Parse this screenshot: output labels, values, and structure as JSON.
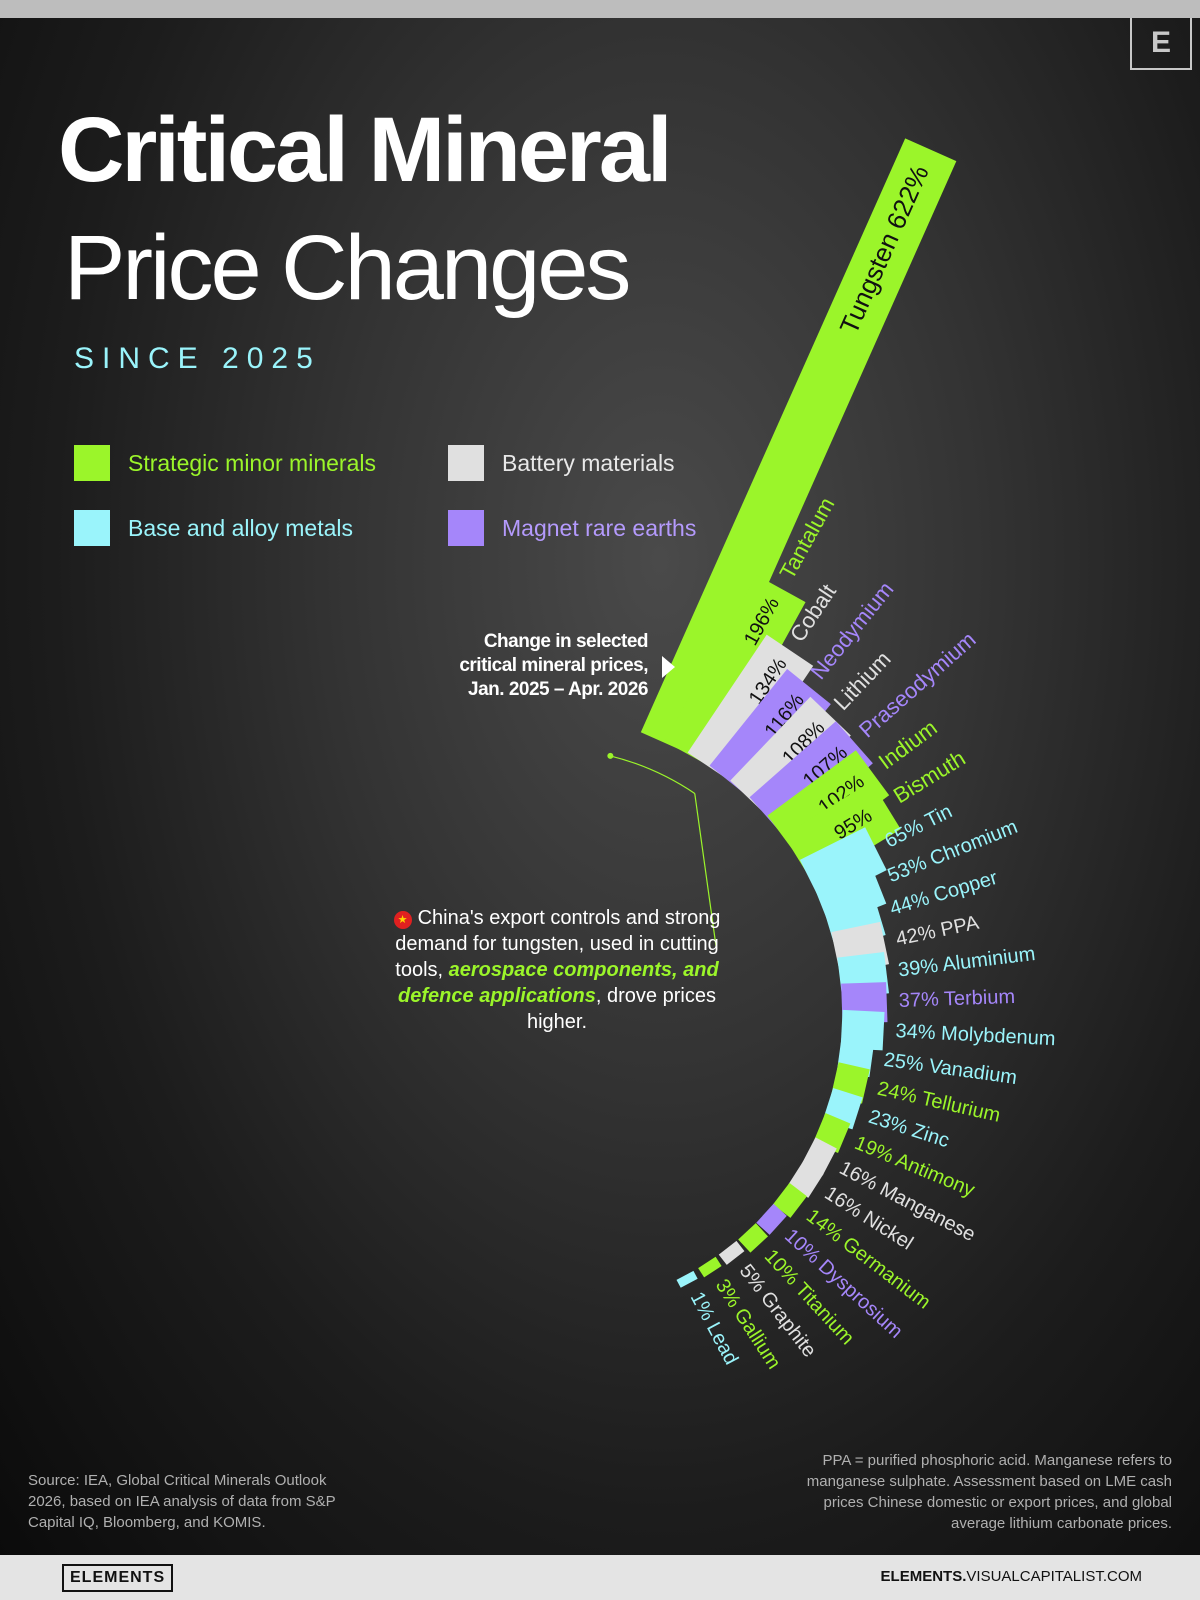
{
  "header": {
    "title_line1": "Critical Mineral",
    "title_line2": "Price Changes",
    "subtitle": "SINCE 2025",
    "corner_logo": "E"
  },
  "legend": [
    {
      "label": "Strategic minor minerals",
      "color": "#9bf52a"
    },
    {
      "label": "Battery materials",
      "color": "#e0e0e0"
    },
    {
      "label": "Base and alloy metals",
      "color": "#9af4fb"
    },
    {
      "label": "Magnet rare earths",
      "color": "#a586fa"
    }
  ],
  "callout": {
    "line1": "Change in selected",
    "line2": "critical mineral prices,",
    "line3": "Jan. 2025 – Apr. 2026"
  },
  "annotation": {
    "text1": "China's export controls and strong demand for tungsten, used in cutting tools, ",
    "emphasis": "aerospace components, and defence applications",
    "text2": ", drove prices higher.",
    "flag_icon": "china-flag-icon"
  },
  "source": "Source: IEA, Global Critical Minerals Outlook 2026, based on IEA analysis of  data from S&P Capital IQ, Bloomberg, and KOMIS.",
  "note": "PPA = purified phosphoric acid. Manganese refers to manganese sulphate. Assessment based on LME cash prices  Chinese domestic or export prices, and global average lithium carbonate prices.",
  "footer": {
    "brand": "ELEMENTS",
    "url_bold": "ELEMENTS.",
    "url_rest": "VISUALCAPITALIST.COM"
  },
  "colors": {
    "strategic": "#9bf52a",
    "battery": "#e0e0e0",
    "base": "#9af4fb",
    "magnet": "#a586fa"
  },
  "chart_data": {
    "type": "radial-bar",
    "unit": "%",
    "series": [
      {
        "name": "Tungsten",
        "value": 622,
        "category": "strategic",
        "label": "622%"
      },
      {
        "name": "Tantalum",
        "value": 196,
        "category": "strategic",
        "label": "196%"
      },
      {
        "name": "Cobalt",
        "value": 134,
        "category": "battery",
        "label": "134%"
      },
      {
        "name": "Neodymium",
        "value": 116,
        "category": "magnet",
        "label": "116%"
      },
      {
        "name": "Lithium",
        "value": 108,
        "category": "battery",
        "label": "108%"
      },
      {
        "name": "Praseodymium",
        "value": 107,
        "category": "magnet",
        "label": "107%"
      },
      {
        "name": "Indium",
        "value": 102,
        "category": "strategic",
        "label": "102%"
      },
      {
        "name": "Bismuth",
        "value": 95,
        "category": "strategic",
        "label": "95%"
      },
      {
        "name": "Tin",
        "value": 65,
        "category": "base",
        "label": "65%"
      },
      {
        "name": "Chromium",
        "value": 53,
        "category": "base",
        "label": "53%"
      },
      {
        "name": "Copper",
        "value": 44,
        "category": "base",
        "label": "44%"
      },
      {
        "name": "PPA",
        "value": 42,
        "category": "battery",
        "label": "42%"
      },
      {
        "name": "Aluminium",
        "value": 39,
        "category": "base",
        "label": "39%"
      },
      {
        "name": "Terbium",
        "value": 37,
        "category": "magnet",
        "label": "37%"
      },
      {
        "name": "Molybdenum",
        "value": 34,
        "category": "base",
        "label": "34%"
      },
      {
        "name": "Vanadium",
        "value": 25,
        "category": "base",
        "label": "25%"
      },
      {
        "name": "Tellurium",
        "value": 24,
        "category": "strategic",
        "label": "24%"
      },
      {
        "name": "Zinc",
        "value": 23,
        "category": "base",
        "label": "23%"
      },
      {
        "name": "Antimony",
        "value": 19,
        "category": "strategic",
        "label": "19%"
      },
      {
        "name": "Manganese",
        "value": 16,
        "category": "battery",
        "label": "16%"
      },
      {
        "name": "Nickel",
        "value": 16,
        "category": "battery",
        "label": "16%"
      },
      {
        "name": "Germanium",
        "value": 14,
        "category": "strategic",
        "label": "14%"
      },
      {
        "name": "Dysprosium",
        "value": 10,
        "category": "magnet",
        "label": "10%"
      },
      {
        "name": "Titanium",
        "value": 10,
        "category": "strategic",
        "label": "10%"
      },
      {
        "name": "Graphite",
        "value": 5,
        "category": "battery",
        "label": "5%"
      },
      {
        "name": "Gallium",
        "value": 3,
        "category": "strategic",
        "label": "3%"
      },
      {
        "name": "Lead",
        "value": 1,
        "category": "base",
        "label": "1%"
      }
    ]
  }
}
